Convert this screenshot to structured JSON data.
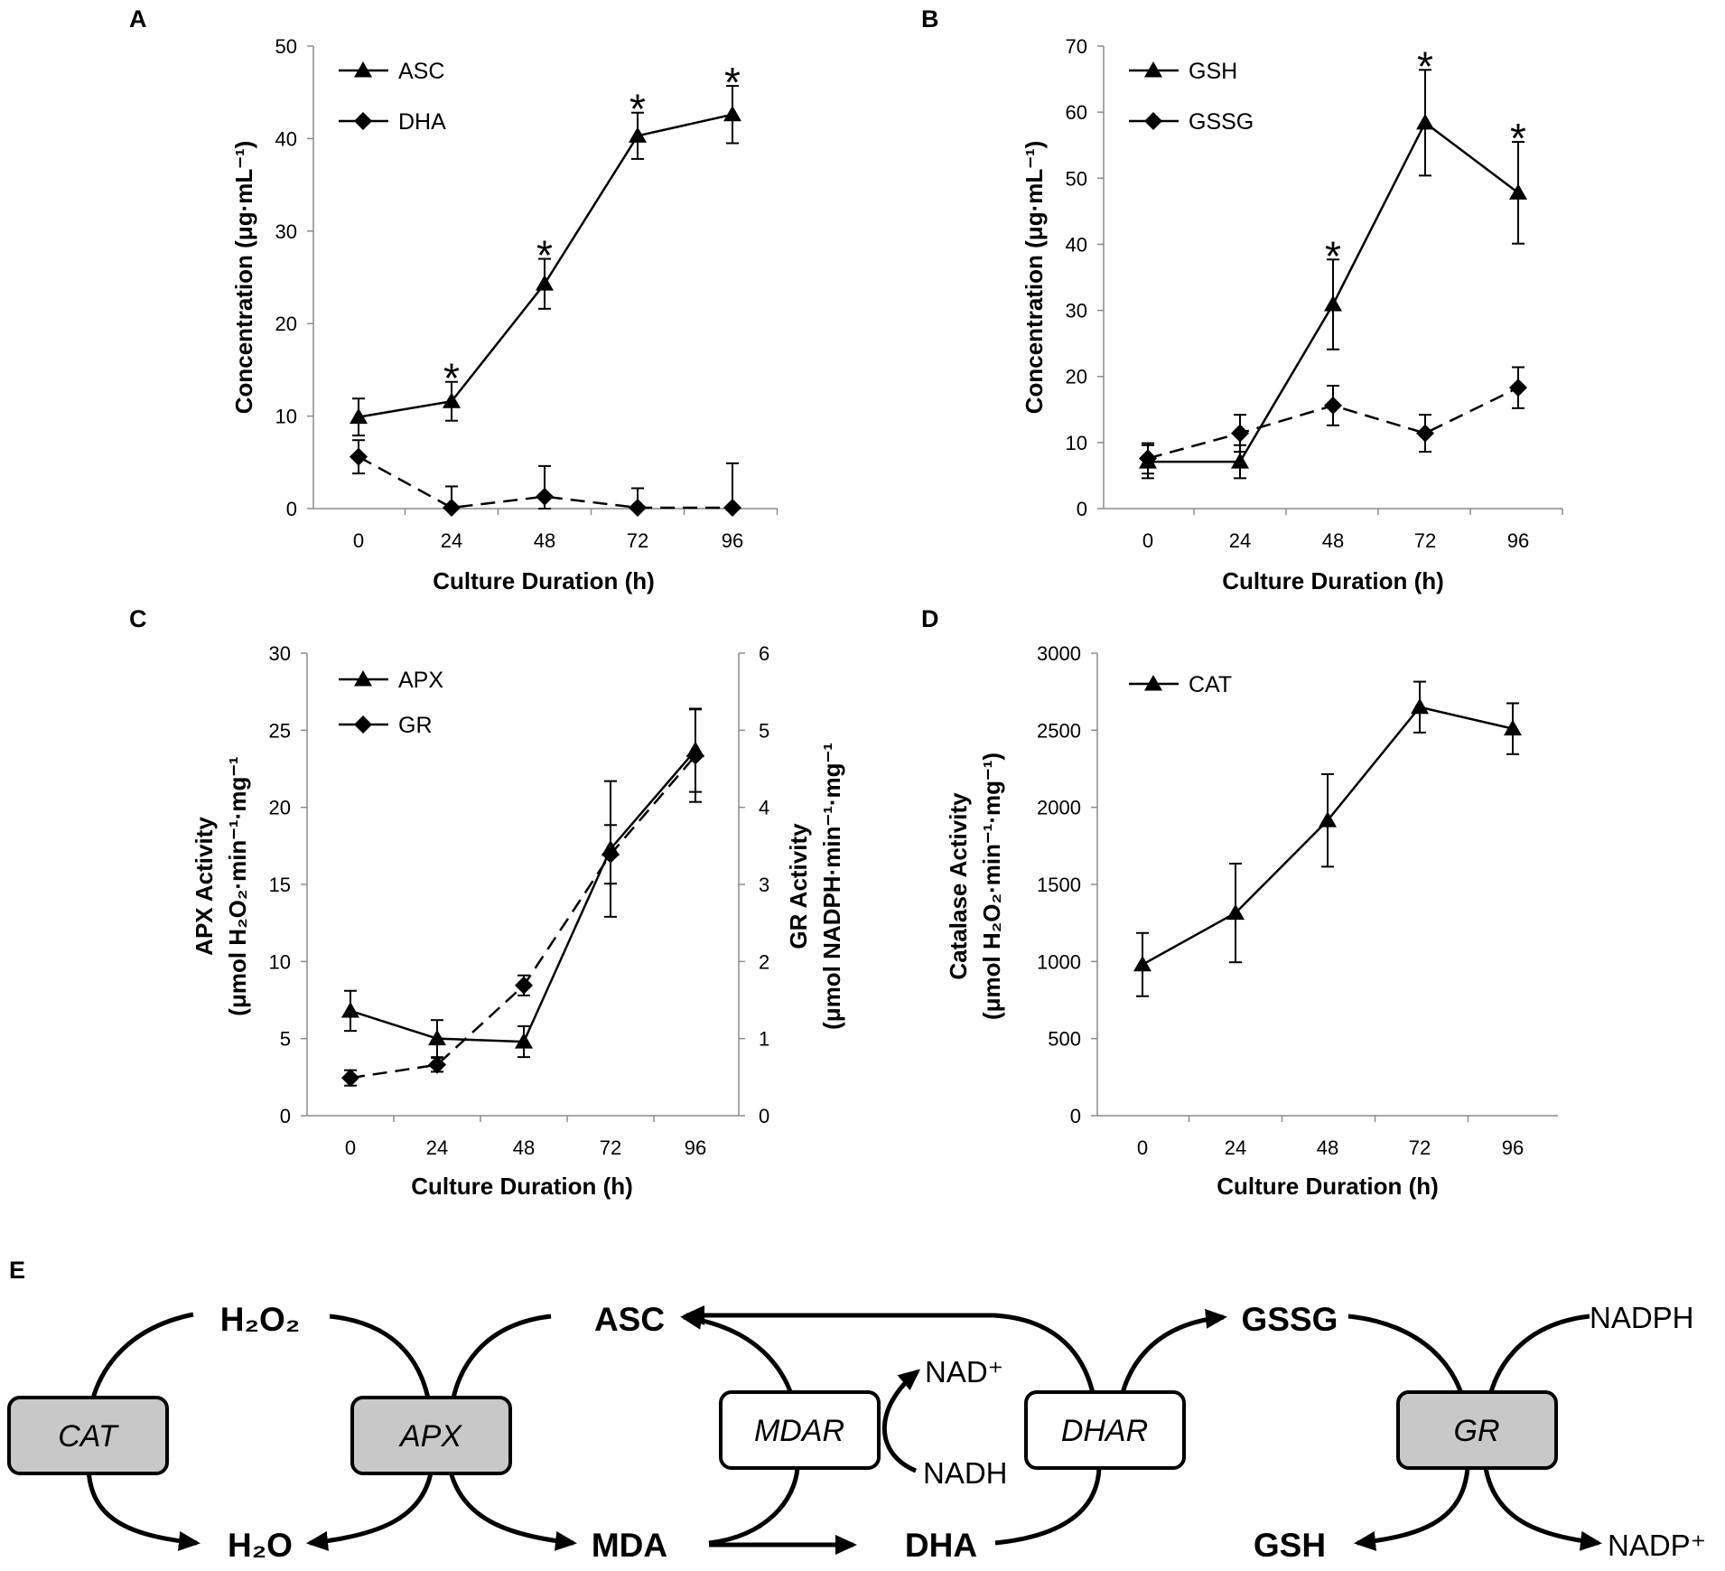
{
  "panels": {
    "A": {
      "letter": "A",
      "xlabel": "Culture Duration (h)",
      "ylabel": "Concentration (μg·mL⁻¹)",
      "categories": [
        "0",
        "24",
        "48",
        "72",
        "96"
      ],
      "yticks": [
        "0",
        "10",
        "20",
        "30",
        "40",
        "50"
      ]
    },
    "B": {
      "letter": "B",
      "xlabel": "Culture Duration (h)",
      "ylabel": "Concentration (μg·mL⁻¹)",
      "categories": [
        "0",
        "24",
        "48",
        "72",
        "96"
      ],
      "yticks": [
        "0",
        "10",
        "20",
        "30",
        "40",
        "50",
        "60",
        "70"
      ]
    },
    "C": {
      "letter": "C",
      "xlabel": "Culture Duration (h)",
      "ylabel_line1": "APX Activity",
      "ylabel_line2": "(μmol H₂O₂·min⁻¹·mg⁻¹",
      "y2label_line1": "GR Activity",
      "y2label_line2": "(μmol NADPH·min⁻¹·mg⁻¹",
      "categories": [
        "0",
        "24",
        "48",
        "72",
        "96"
      ],
      "yticks": [
        "0",
        "5",
        "10",
        "15",
        "20",
        "25",
        "30"
      ],
      "y2ticks": [
        "0",
        "1",
        "2",
        "3",
        "4",
        "5",
        "6"
      ]
    },
    "D": {
      "letter": "D",
      "xlabel": "Culture Duration (h)",
      "ylabel_line1": "Catalase Activity",
      "ylabel_line2": "(μmol H₂O₂·min⁻¹·mg⁻¹)",
      "categories": [
        "0",
        "24",
        "48",
        "72",
        "96"
      ],
      "yticks": [
        "0",
        "500",
        "1000",
        "1500",
        "2000",
        "2500",
        "3000"
      ]
    },
    "E": {
      "letter": "E"
    }
  },
  "chart_data": [
    {
      "panel": "A",
      "type": "line",
      "xlabel": "Culture Duration (h)",
      "ylabel": "Concentration (μg·mL⁻¹)",
      "categories": [
        "0",
        "24",
        "48",
        "72",
        "96"
      ],
      "ylim": [
        0,
        50
      ],
      "series": [
        {
          "name": "ASC",
          "marker": "triangle",
          "dash": "solid",
          "values": [
            9.9,
            11.6,
            24.3,
            40.3,
            42.6
          ],
          "errors": [
            2.0,
            2.1,
            2.7,
            2.5,
            3.1
          ]
        },
        {
          "name": "DHA",
          "marker": "diamond",
          "dash": "dashed",
          "values": [
            5.6,
            0.1,
            1.3,
            0.1,
            0.1
          ],
          "errors": [
            1.8,
            2.3,
            3.3,
            2.1,
            4.8
          ]
        }
      ],
      "significance": [
        "",
        "*",
        "*",
        "*",
        "*"
      ]
    },
    {
      "panel": "B",
      "type": "line",
      "xlabel": "Culture Duration (h)",
      "ylabel": "Concentration (μg·mL⁻¹)",
      "categories": [
        "0",
        "24",
        "48",
        "72",
        "96"
      ],
      "ylim": [
        0,
        70
      ],
      "series": [
        {
          "name": "GSH",
          "marker": "triangle",
          "dash": "solid",
          "values": [
            7.1,
            7.1,
            30.9,
            58.4,
            47.8
          ],
          "errors": [
            2.5,
            2.5,
            6.8,
            8.0,
            7.7
          ]
        },
        {
          "name": "GSSG",
          "marker": "diamond",
          "dash": "dashed",
          "values": [
            7.6,
            11.4,
            15.6,
            11.4,
            18.3
          ],
          "errors": [
            2.3,
            2.8,
            3.0,
            2.8,
            3.1
          ]
        }
      ],
      "significance": [
        "",
        "",
        "*",
        "*",
        "*"
      ]
    },
    {
      "panel": "C",
      "type": "line",
      "xlabel": "Culture Duration (h)",
      "categories": [
        "0",
        "24",
        "48",
        "72",
        "96"
      ],
      "ylim": [
        0,
        30
      ],
      "y2lim": [
        0,
        6
      ],
      "series": [
        {
          "name": "APX",
          "axis": "left",
          "marker": "triangle",
          "dash": "solid",
          "values": [
            6.8,
            5.0,
            4.8,
            17.3,
            23.7
          ],
          "errors": [
            1.3,
            1.2,
            1.0,
            4.4,
            2.7
          ]
        },
        {
          "name": "GR",
          "axis": "right",
          "marker": "diamond",
          "dash": "dashed",
          "values": [
            0.49,
            0.66,
            1.69,
            3.39,
            4.67
          ],
          "errors": [
            0.1,
            0.09,
            0.13,
            0.38,
            0.6
          ]
        }
      ]
    },
    {
      "panel": "D",
      "type": "line",
      "xlabel": "Culture Duration (h)",
      "categories": [
        "0",
        "24",
        "48",
        "72",
        "96"
      ],
      "ylim": [
        0,
        3000
      ],
      "series": [
        {
          "name": "CAT",
          "marker": "triangle",
          "dash": "solid",
          "values": [
            980,
            1315,
            1915,
            2650,
            2510
          ],
          "errors": [
            205,
            320,
            300,
            165,
            165
          ]
        }
      ]
    }
  ],
  "pathway": {
    "nodes": {
      "h2o2": "H₂O₂",
      "h2o": "H₂O",
      "asc": "ASC",
      "mda": "MDA",
      "dha": "DHA",
      "gssg": "GSSG",
      "gsh": "GSH",
      "nadph": "NADPH",
      "nadp": "NADP⁺",
      "nad": "NAD⁺",
      "nadh": "NADH"
    },
    "enzymes": [
      "CAT",
      "APX",
      "MDAR",
      "DHAR",
      "GR"
    ],
    "shaded_color": "#c8c8c8",
    "white_color": "#ffffff"
  }
}
